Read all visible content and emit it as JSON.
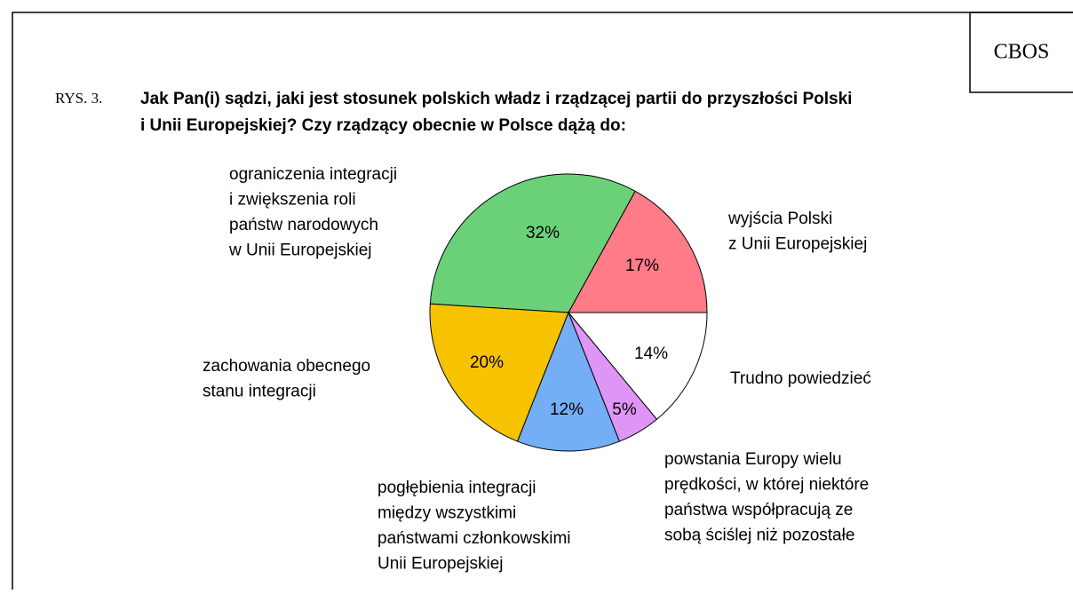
{
  "chart_data": {
    "type": "pie",
    "source": "CBOS",
    "figure_label": "RYS. 3.",
    "title": [
      "Jak Pan(i) sądzi, jaki jest stosunek polskich władz i rządzącej partii do przyszłości Polski",
      "i Unii Europejskiej? Czy rządzący obecnie w Polsce dążą do:"
    ],
    "categories": [
      [
        "wyjścia Polski",
        "z Unii Europejskiej"
      ],
      [
        "ograniczenia integracji",
        "i zwiększenia roli",
        "państw narodowych",
        "w Unii Europejskiej"
      ],
      [
        "zachowania obecnego",
        "stanu integracji"
      ],
      [
        "pogłębienia integracji",
        "między wszystkimi",
        "państwami członkowskimi",
        "Unii Europejskiej"
      ],
      [
        "powstania Europy wielu",
        "prędkości, w której niektóre",
        "państwa współpracują ze",
        "sobą ściślej niż pozostałe"
      ],
      [
        "Trudno powiedzieć"
      ]
    ],
    "values": [
      17,
      32,
      20,
      12,
      5,
      14
    ],
    "value_labels": [
      "17%",
      "32%",
      "20%",
      "12%",
      "5%",
      "14%"
    ],
    "colors": [
      "#ff7b87",
      "#6bd178",
      "#f7c200",
      "#74aef5",
      "#de95f5",
      "#ffffff"
    ]
  }
}
